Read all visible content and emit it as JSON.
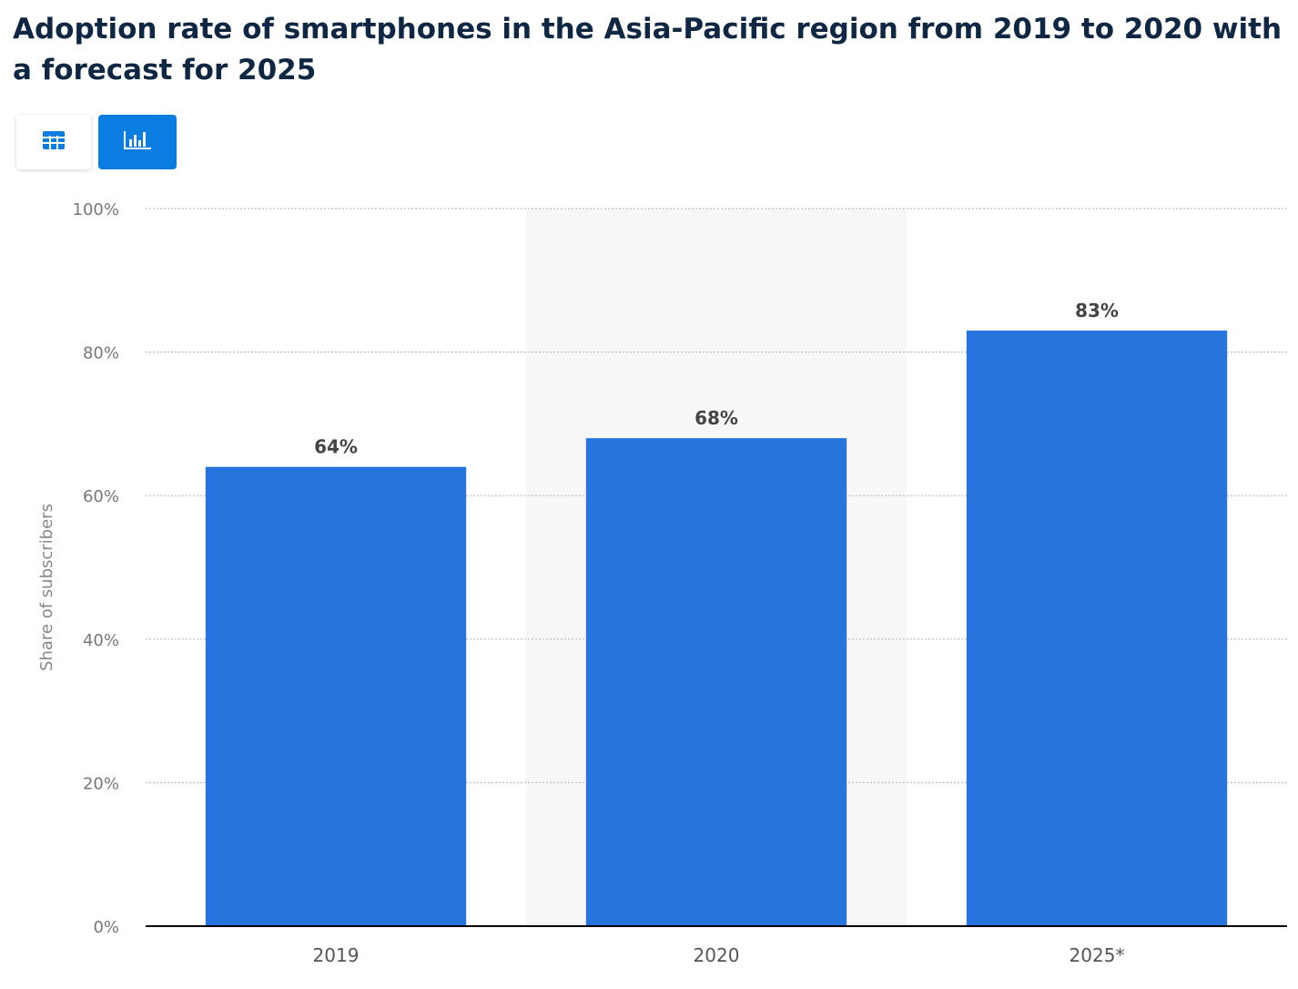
{
  "header": {
    "title": "Adoption rate of smartphones in the Asia-Pacific region from 2019 to 2020 with a forecast for 2025"
  },
  "toolbar": {
    "table_view_icon": "table-icon",
    "chart_view_icon": "bar-chart-icon",
    "active_view": "chart"
  },
  "colors": {
    "bar": "#2874de",
    "accent": "#0a7ee0",
    "title": "#0f2742",
    "highlight_band": "#f7f7f7"
  },
  "chart_data": {
    "type": "bar",
    "categories": [
      "2019",
      "2020",
      "2025*"
    ],
    "values": [
      64,
      68,
      83
    ],
    "value_labels": [
      "64%",
      "68%",
      "83%"
    ],
    "title": "Adoption rate of smartphones in the Asia-Pacific region from 2019 to 2020 with a forecast for 2025",
    "xlabel": "",
    "ylabel": "Share of subscribers",
    "ylim": [
      0,
      100
    ],
    "yticks": [
      0,
      20,
      40,
      60,
      80,
      100
    ],
    "ytick_labels": [
      "0%",
      "20%",
      "40%",
      "60%",
      "80%",
      "100%"
    ],
    "highlighted_category": "2020",
    "grid": true,
    "legend": "none"
  }
}
